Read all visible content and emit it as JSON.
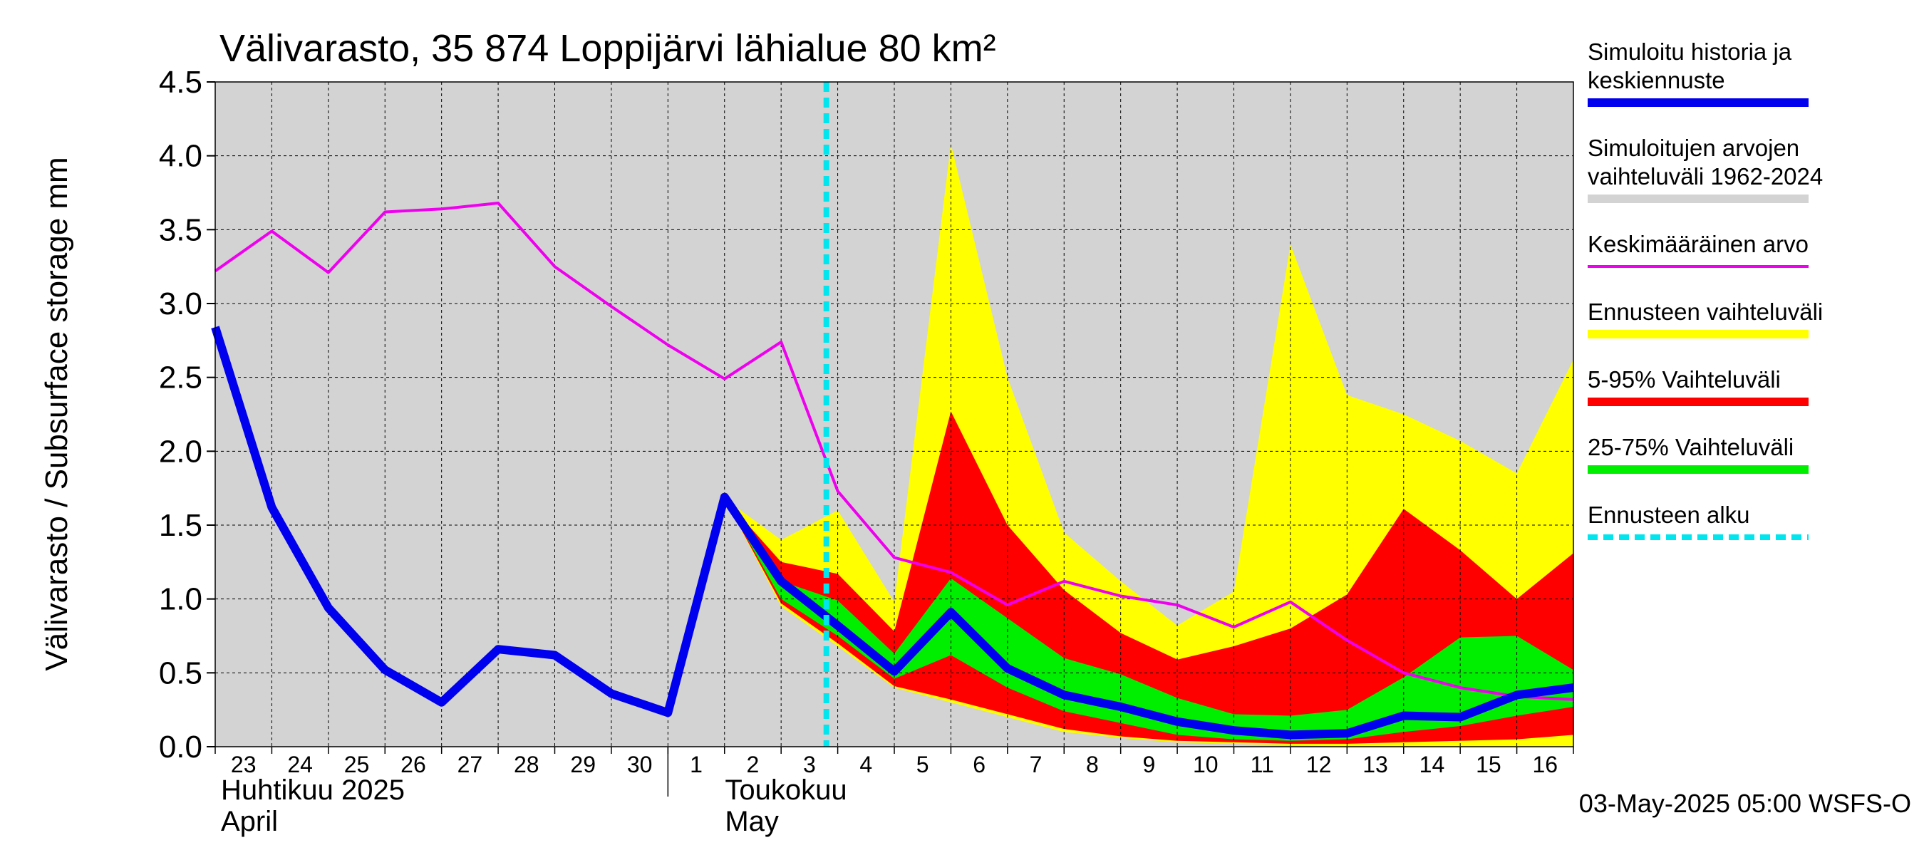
{
  "chart_data": {
    "type": "area",
    "title": "Välivarasto, 35 874 Loppijärvi lähialue 80 km²",
    "ylabel": "Välivarasto / Subsurface storage  mm",
    "xlabel": "",
    "ylim": [
      0,
      4.5
    ],
    "yticks": [
      "0.0",
      "0.5",
      "1.0",
      "1.5",
      "2.0",
      "2.5",
      "3.0",
      "3.5",
      "4.0",
      "4.5"
    ],
    "x_tick_labels": [
      "23",
      "24",
      "25",
      "26",
      "27",
      "28",
      "29",
      "30",
      "1",
      "2",
      "3",
      "4",
      "5",
      "6",
      "7",
      "8",
      "9",
      "10",
      "11",
      "12",
      "13",
      "14",
      "15",
      "16"
    ],
    "month_labels": [
      {
        "fi": "Huhtikuu  2025",
        "en": "April"
      },
      {
        "fi": "Toukokuu",
        "en": "May"
      }
    ],
    "grid": true,
    "legend_position": "right",
    "forecast_start_x": 10.8,
    "series": [
      {
        "name": "Simuloitujen arvojen vaihteluväli 1962-2024",
        "role": "historical-range",
        "color": "#d3d3d3",
        "x": [
          0,
          24
        ],
        "lower": [
          0,
          0
        ],
        "upper": [
          4.5,
          4.5
        ]
      },
      {
        "name": "Ennusteen vaihteluväli",
        "role": "forecast-range",
        "color": "#ffff00",
        "x": [
          9,
          10,
          11,
          12,
          13,
          14,
          15,
          16,
          17,
          18,
          19,
          20,
          21,
          22,
          23,
          24
        ],
        "upper": [
          1.68,
          1.4,
          1.6,
          0.98,
          4.08,
          2.5,
          1.45,
          1.12,
          0.82,
          1.05,
          3.4,
          2.38,
          2.25,
          2.07,
          1.85,
          2.62
        ],
        "lower": [
          1.68,
          0.95,
          0.68,
          0.4,
          0.3,
          0.2,
          0.1,
          0.06,
          0.03,
          0.02,
          0.01,
          0.0,
          0.0,
          0.0,
          0.0,
          0.0
        ]
      },
      {
        "name": "5-95% Vaihteluväli",
        "role": "band-5-95",
        "color": "#ff0000",
        "x": [
          9,
          10,
          11,
          12,
          13,
          14,
          15,
          16,
          17,
          18,
          19,
          20,
          21,
          22,
          23,
          24
        ],
        "upper": [
          1.68,
          1.25,
          1.17,
          0.78,
          2.27,
          1.5,
          1.06,
          0.77,
          0.59,
          0.68,
          0.8,
          1.03,
          1.61,
          1.33,
          1.0,
          1.31
        ],
        "lower": [
          1.68,
          0.97,
          0.7,
          0.41,
          0.32,
          0.22,
          0.12,
          0.07,
          0.04,
          0.03,
          0.02,
          0.02,
          0.03,
          0.04,
          0.05,
          0.08
        ]
      },
      {
        "name": "25-75% Vaihteluväli",
        "role": "band-25-75",
        "color": "#00ee00",
        "x": [
          9,
          10,
          11,
          12,
          13,
          14,
          15,
          16,
          17,
          18,
          19,
          20,
          21,
          22,
          23,
          24
        ],
        "upper": [
          1.68,
          1.12,
          0.99,
          0.63,
          1.14,
          0.87,
          0.6,
          0.49,
          0.33,
          0.22,
          0.21,
          0.25,
          0.47,
          0.74,
          0.75,
          0.52
        ],
        "lower": [
          1.68,
          1.0,
          0.75,
          0.46,
          0.62,
          0.4,
          0.24,
          0.16,
          0.08,
          0.05,
          0.04,
          0.05,
          0.1,
          0.14,
          0.21,
          0.27
        ]
      },
      {
        "name": "Keskimääräinen arvo",
        "role": "mean",
        "color": "#ee00ee",
        "x": [
          0,
          1,
          2,
          3,
          4,
          5,
          6,
          7,
          8,
          9,
          10,
          11,
          12,
          13,
          14,
          15,
          16,
          17,
          18,
          19,
          20,
          21,
          22,
          23,
          24
        ],
        "values": [
          3.22,
          3.49,
          3.21,
          3.62,
          3.64,
          3.68,
          3.25,
          2.98,
          2.72,
          2.49,
          2.74,
          1.73,
          1.28,
          1.18,
          0.96,
          1.12,
          1.02,
          0.96,
          0.81,
          0.98,
          0.72,
          0.5,
          0.4,
          0.34,
          0.32
        ]
      },
      {
        "name": "Simuloitu historia ja keskiennuste",
        "role": "median",
        "color": "#0000ee",
        "x": [
          0,
          1,
          2,
          3,
          4,
          5,
          6,
          7,
          8,
          9,
          10,
          11,
          12,
          13,
          14,
          15,
          16,
          17,
          18,
          19,
          20,
          21,
          22,
          23,
          24
        ],
        "values": [
          2.84,
          1.62,
          0.94,
          0.52,
          0.3,
          0.66,
          0.62,
          0.36,
          0.23,
          1.69,
          1.12,
          0.82,
          0.51,
          0.91,
          0.53,
          0.35,
          0.27,
          0.17,
          0.11,
          0.08,
          0.09,
          0.21,
          0.2,
          0.35,
          0.4
        ]
      }
    ],
    "legend": [
      {
        "text": "Simuloitu historia ja keskiennuste",
        "lines": [
          "Simuloitu historia ja",
          "keskiennuste"
        ],
        "color": "#0000ee",
        "style": "thick"
      },
      {
        "text": "Simuloitujen arvojen vaihteluväli 1962-2024",
        "lines": [
          "Simuloitujen arvojen",
          "vaihteluväli 1962-2024"
        ],
        "color": "#d3d3d3",
        "style": "thick"
      },
      {
        "text": "Keskimääräinen arvo",
        "lines": [
          "Keskimääräinen arvo"
        ],
        "color": "#ee00ee",
        "style": "thin"
      },
      {
        "text": "Ennusteen vaihteluväli",
        "lines": [
          "Ennusteen vaihteluväli"
        ],
        "color": "#ffff00",
        "style": "thick"
      },
      {
        "text": "5-95% Vaihteluväli",
        "lines": [
          "5-95% Vaihteluväli"
        ],
        "color": "#ff0000",
        "style": "thick"
      },
      {
        "text": "25-75% Vaihteluväli",
        "lines": [
          "25-75% Vaihteluväli"
        ],
        "color": "#00ee00",
        "style": "thick"
      },
      {
        "text": "Ennusteen alku",
        "lines": [
          "Ennusteen alku"
        ],
        "color": "#00e5ee",
        "style": "dashed"
      }
    ],
    "footer": "03-May-2025 05:00 WSFS-O"
  }
}
